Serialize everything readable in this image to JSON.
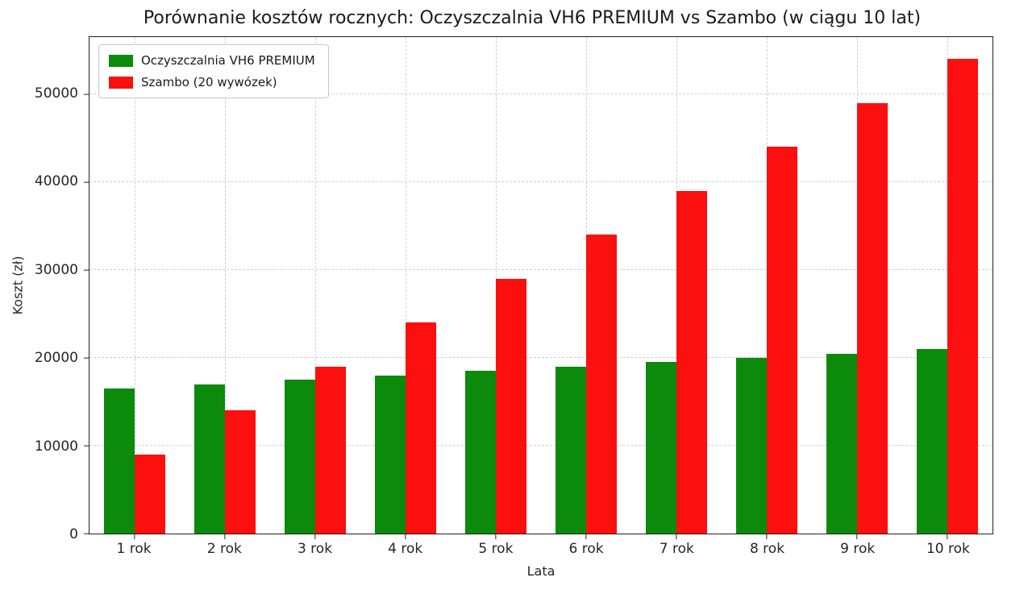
{
  "chart_data": {
    "type": "bar",
    "title": "Porównanie kosztów rocznych: Oczyszczalnia VH6 PREMIUM vs Szambo (w ciągu 10 lat)",
    "xlabel": "Lata",
    "ylabel": "Koszt (zł)",
    "categories": [
      "1 rok",
      "2 rok",
      "3 rok",
      "4 rok",
      "5 rok",
      "6 rok",
      "7 rok",
      "8 rok",
      "9 rok",
      "10 rok"
    ],
    "series": [
      {
        "name": "Oczyszczalnia VH6 PREMIUM",
        "color": "#0b8a0b",
        "values": [
          16500,
          17000,
          17500,
          18000,
          18500,
          19000,
          19500,
          20000,
          20500,
          21000
        ]
      },
      {
        "name": "Szambo (20 wywózek)",
        "color": "#fb0f0f",
        "values": [
          9000,
          14000,
          19000,
          24000,
          29000,
          34000,
          39000,
          44000,
          49000,
          54000
        ]
      }
    ],
    "ylim": [
      0,
      56500
    ],
    "yticks": [
      0,
      10000,
      20000,
      30000,
      40000,
      50000
    ],
    "grid": true,
    "legend_position": "upper left"
  }
}
